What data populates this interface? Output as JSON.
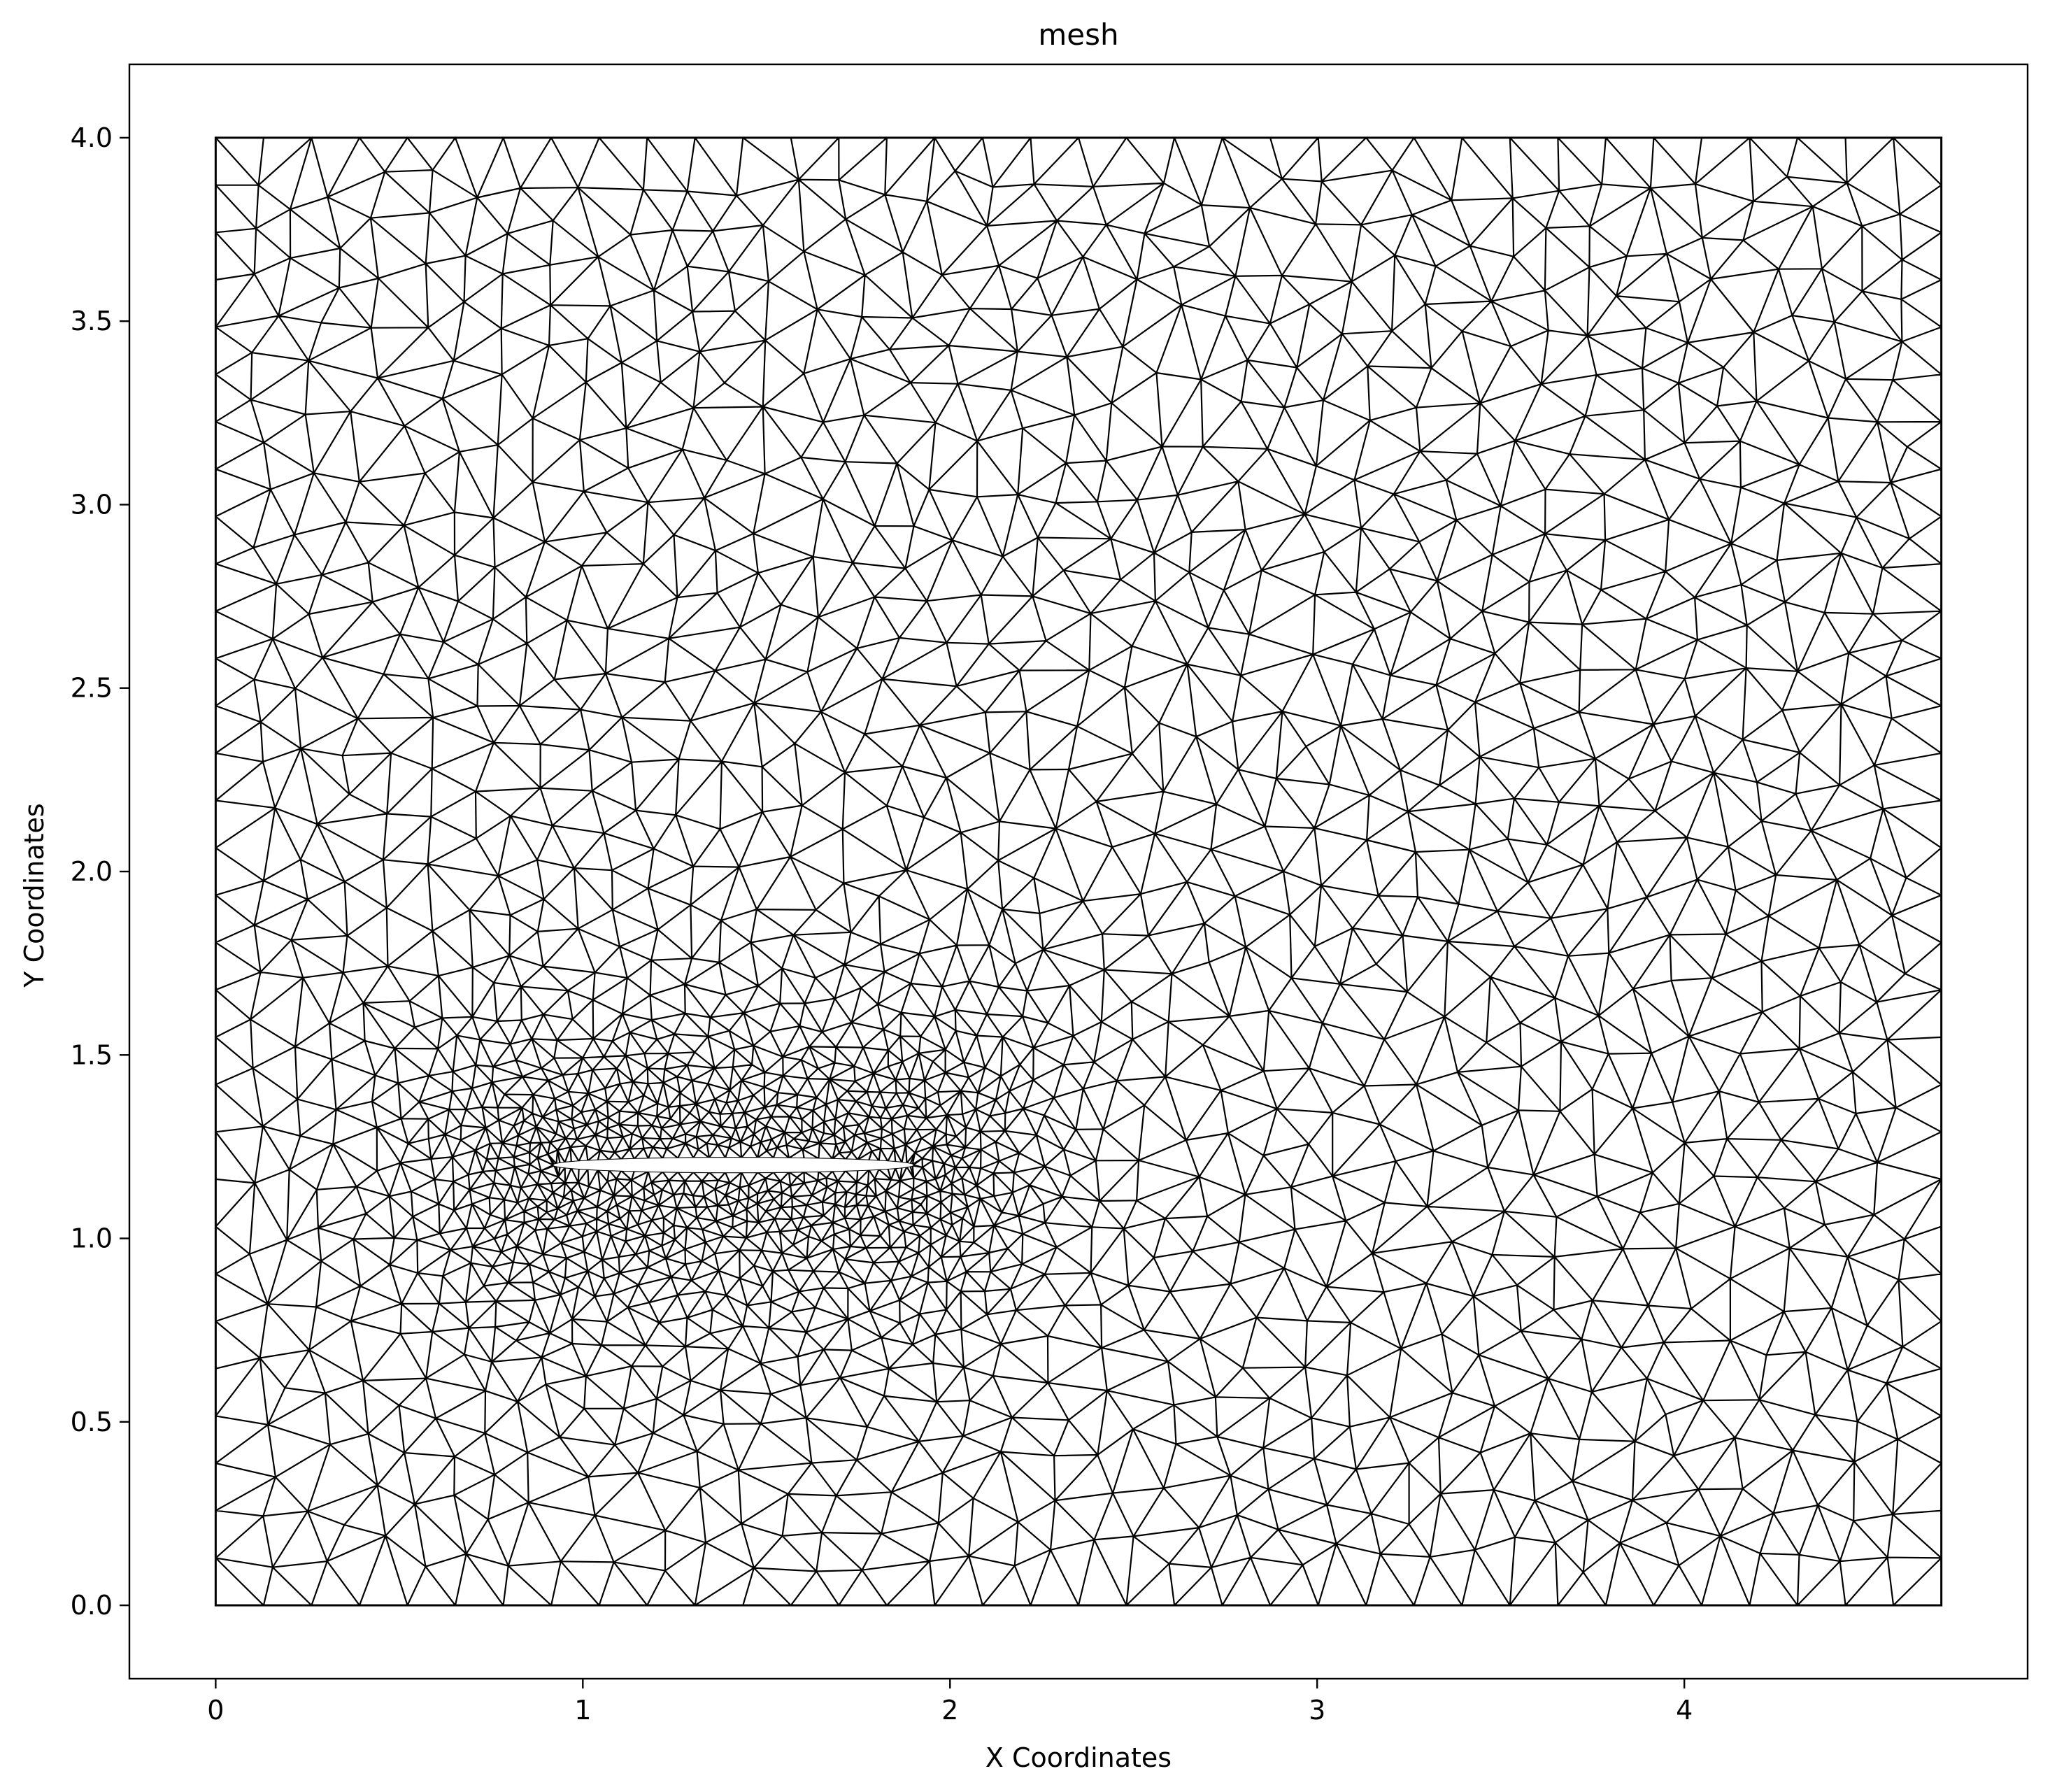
{
  "chart_data": {
    "type": "mesh",
    "title": "mesh",
    "xlabel": "X Coordinates",
    "ylabel": "Y Coordinates",
    "xlim": [
      -0.235,
      4.935
    ],
    "ylim": [
      -0.2,
      4.2
    ],
    "x_ticks": [
      {
        "value": 0,
        "label": "0"
      },
      {
        "value": 1,
        "label": "1"
      },
      {
        "value": 2,
        "label": "2"
      },
      {
        "value": 3,
        "label": "3"
      },
      {
        "value": 4,
        "label": "4"
      }
    ],
    "y_ticks": [
      {
        "value": 0.0,
        "label": "0.0"
      },
      {
        "value": 0.5,
        "label": "0.5"
      },
      {
        "value": 1.0,
        "label": "1.0"
      },
      {
        "value": 1.5,
        "label": "1.5"
      },
      {
        "value": 2.0,
        "label": "2.0"
      },
      {
        "value": 2.5,
        "label": "2.5"
      },
      {
        "value": 3.0,
        "label": "3.0"
      },
      {
        "value": 3.5,
        "label": "3.5"
      },
      {
        "value": 4.0,
        "label": "4.0"
      }
    ],
    "domain": {
      "x_min": 0.0,
      "x_max": 4.7,
      "y_min": 0.0,
      "y_max": 4.0
    },
    "airfoil": {
      "leading_edge_x": 0.92,
      "trailing_edge_x": 1.9,
      "center_y": 1.2,
      "thickness": 0.04
    },
    "mesh_color": "#000000",
    "grid": false,
    "legend": false
  }
}
